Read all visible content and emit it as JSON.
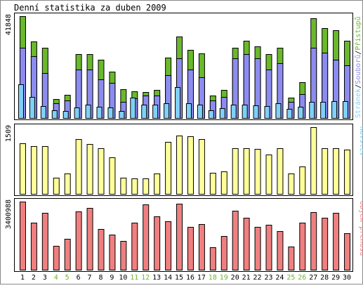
{
  "chart_data": [
    {
      "type": "bar",
      "title": "Denní statistika za duben 2009",
      "categories": [
        "1",
        "2",
        "3",
        "4",
        "5",
        "6",
        "7",
        "8",
        "9",
        "10",
        "11",
        "12",
        "13",
        "14",
        "15",
        "16",
        "17",
        "18",
        "19",
        "20",
        "21",
        "22",
        "23",
        "24",
        "25",
        "26",
        "27",
        "28",
        "29",
        "30"
      ],
      "weekend_days": [
        "4",
        "5",
        "11",
        "12",
        "18",
        "19",
        "25",
        "26"
      ],
      "ymax_label": "41848",
      "ylabel_parts": [
        "Stránek",
        "/",
        "Souborů",
        "/",
        "Přístupů"
      ],
      "series": [
        {
          "name": "Přístupů",
          "color": "#6ab82c",
          "values": [
            41848,
            31600,
            29000,
            7900,
            9500,
            26200,
            26200,
            24000,
            19000,
            11800,
            11000,
            10700,
            11500,
            24800,
            33500,
            28000,
            26500,
            9300,
            11500,
            28800,
            31800,
            29400,
            26400,
            28900,
            8400,
            14800,
            41000,
            37000,
            36000,
            31700
          ]
        },
        {
          "name": "Souborů",
          "color": "#8c8cf0",
          "values": [
            28800,
            25400,
            18500,
            6200,
            7300,
            20000,
            20000,
            15800,
            14400,
            6700,
            8100,
            9200,
            9200,
            17500,
            24600,
            20000,
            16700,
            7300,
            8800,
            24500,
            26300,
            24500,
            19800,
            22500,
            6700,
            9800,
            28800,
            26700,
            24000,
            21700
          ]
        },
        {
          "name": "Stránek",
          "color": "#80d0f8",
          "values": [
            13900,
            8700,
            5000,
            3300,
            2900,
            4300,
            5500,
            4700,
            4300,
            3000,
            8400,
            5600,
            5500,
            6000,
            12800,
            6000,
            5500,
            3300,
            3900,
            5600,
            5600,
            5200,
            5000,
            6000,
            3800,
            4600,
            6500,
            6600,
            7000,
            6800
          ]
        }
      ]
    },
    {
      "type": "bar",
      "ymax_label": "1509",
      "ylabel": "Návštěv",
      "series": [
        {
          "name": "Návštěv",
          "color": "#ffff99",
          "values": [
            1149,
            1075,
            1075,
            358,
            454,
            1239,
            1121,
            1039,
            822,
            358,
            342,
            342,
            454,
            1177,
            1325,
            1309,
            1239,
            473,
            515,
            1038,
            1038,
            1009,
            894,
            1026,
            454,
            621,
            1509,
            1038,
            1038,
            1002
          ]
        }
      ]
    },
    {
      "type": "bar",
      "ymax_label": "3400988",
      "ylabel": "Objem přenosu",
      "series": [
        {
          "name": "Objem přenosu",
          "color": "#f08080",
          "values": [
            3400988,
            2345000,
            2850000,
            1200000,
            1530000,
            2920000,
            3080000,
            2020000,
            1750000,
            1430000,
            2350000,
            3260000,
            2650000,
            2410000,
            3280000,
            2130000,
            2280000,
            1120000,
            1690000,
            2950000,
            2580000,
            2130000,
            2260000,
            1930000,
            1150000,
            2350000,
            2870000,
            2580000,
            2850000,
            1830000
          ]
        }
      ]
    }
  ]
}
